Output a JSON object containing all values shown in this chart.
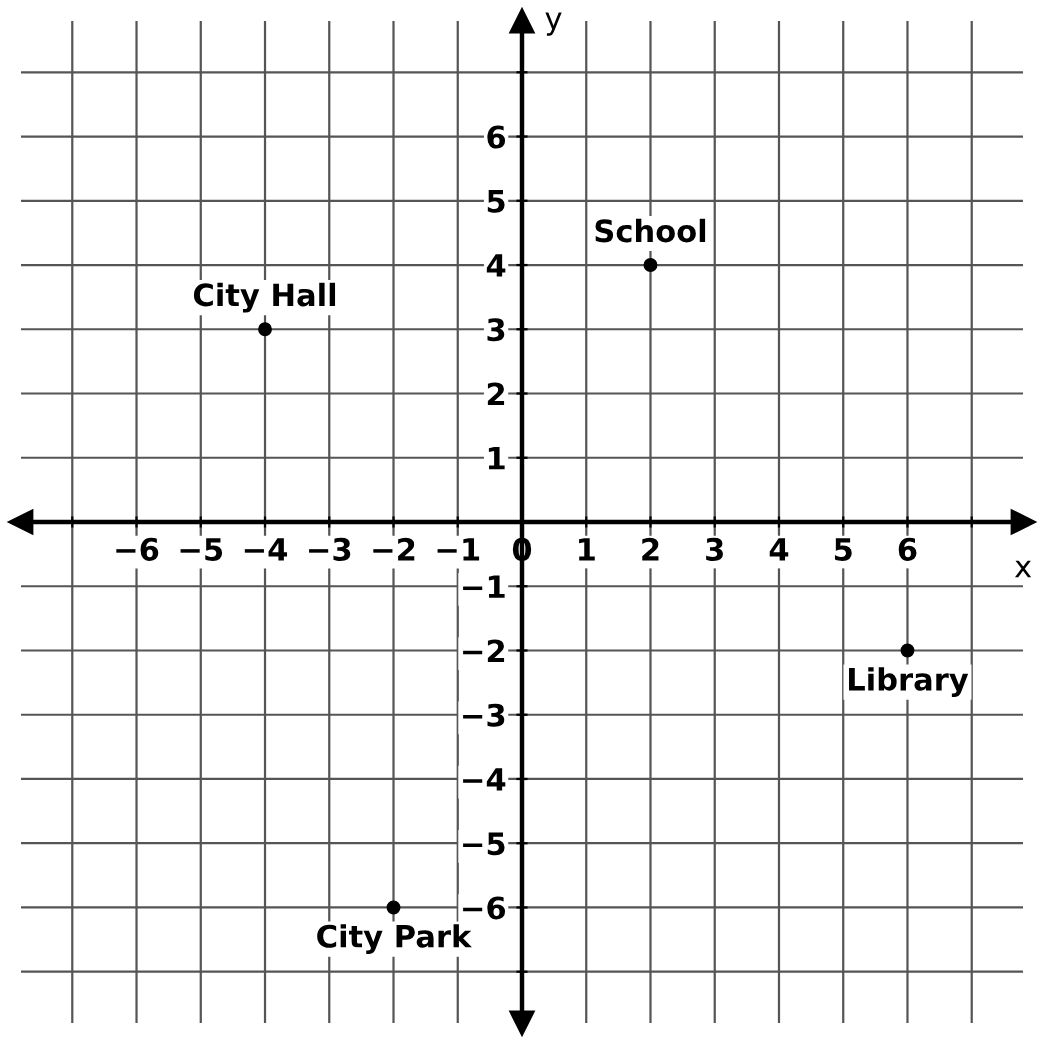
{
  "chart_data": {
    "type": "scatter",
    "xlabel": "x",
    "ylabel": "y",
    "x": [
      -4,
      2,
      6,
      -2
    ],
    "values": [
      3,
      4,
      -2,
      -6
    ],
    "color": "#000000",
    "marker": "circle",
    "annotations": [
      {
        "text": "City Hall",
        "x": -4,
        "y": 3
      },
      {
        "text": "School",
        "x": 2,
        "y": 4
      },
      {
        "text": "Library",
        "x": 6,
        "y": -2
      },
      {
        "text": "City Park",
        "x": -2,
        "y": -6
      }
    ],
    "xlim": [
      -7.8,
      7.8
    ],
    "ylim": [
      -7.8,
      7.8
    ],
    "xticks": [
      {
        "value": -7,
        "label": null
      },
      -6,
      -5,
      -4,
      -3,
      -2,
      -1,
      0,
      1,
      2,
      3,
      4,
      5,
      6,
      {
        "value": 7,
        "label": null
      }
    ],
    "yticks": [
      {
        "value": -7,
        "label": null
      },
      -6,
      -5,
      -4,
      -3,
      -2,
      -1,
      {
        "value": 0,
        "label": null
      },
      1,
      2,
      3,
      4,
      5,
      6,
      {
        "value": 7,
        "label": null
      }
    ],
    "grid": true
  }
}
